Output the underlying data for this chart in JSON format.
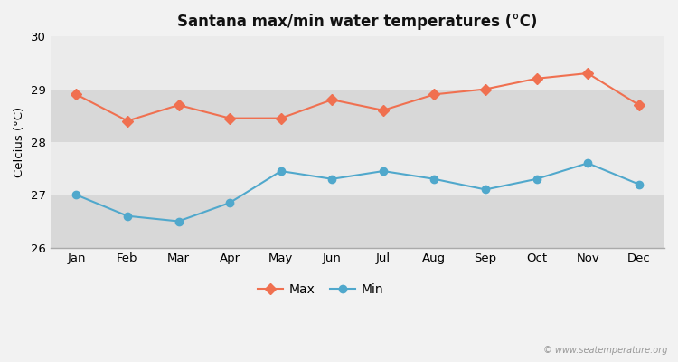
{
  "months": [
    "Jan",
    "Feb",
    "Mar",
    "Apr",
    "May",
    "Jun",
    "Jul",
    "Aug",
    "Sep",
    "Oct",
    "Nov",
    "Dec"
  ],
  "max_temps": [
    28.9,
    28.4,
    28.7,
    28.45,
    28.45,
    28.8,
    28.6,
    28.9,
    29.0,
    29.2,
    29.3,
    28.7
  ],
  "min_temps": [
    27.0,
    26.6,
    26.5,
    26.85,
    27.45,
    27.3,
    27.45,
    27.3,
    27.1,
    27.3,
    27.6,
    27.2
  ],
  "max_color": "#f07050",
  "min_color": "#50a8cc",
  "title": "Santana max/min water temperatures (°C)",
  "ylabel": "Celcius (°C)",
  "ylim": [
    26,
    30
  ],
  "yticks": [
    26,
    27,
    28,
    29,
    30
  ],
  "fig_bg_color": "#f2f2f2",
  "band_light": "#ebebeb",
  "band_dark": "#d8d8d8",
  "watermark": "© www.seatemperature.org",
  "legend_max": "Max",
  "legend_min": "Min"
}
